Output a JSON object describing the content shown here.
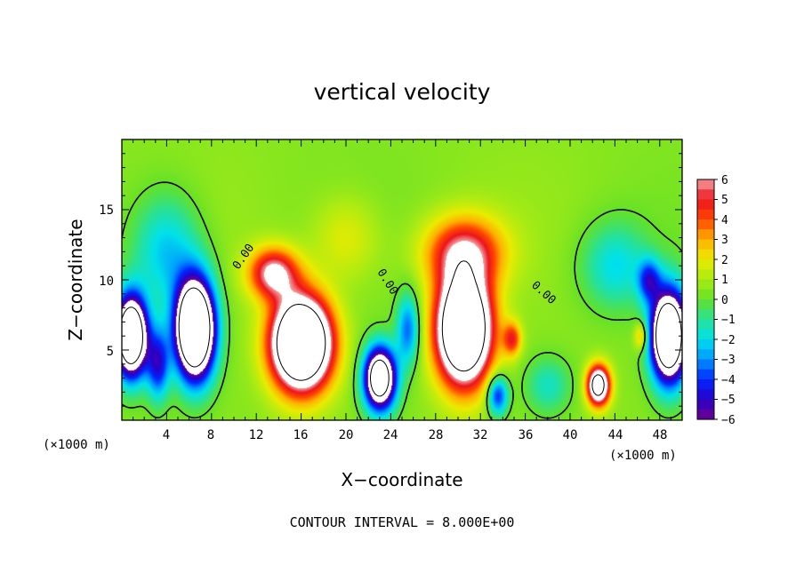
{
  "chart_data": {
    "type": "heatmap",
    "title": "vertical velocity",
    "xlabel": "X−coordinate",
    "ylabel": "Z−coordinate",
    "x_unit_left": "(×1000 m)",
    "x_unit_right": "(×1000 m)",
    "xlim": [
      0,
      50
    ],
    "ylim": [
      0,
      20
    ],
    "x_ticks": [
      "4",
      "8",
      "12",
      "16",
      "20",
      "24",
      "28",
      "32",
      "36",
      "40",
      "44",
      "48"
    ],
    "y_ticks": [
      "5",
      "10",
      "15"
    ],
    "colorbar": {
      "range": [
        -6,
        6
      ],
      "labels": [
        "6",
        "5",
        "4",
        "3",
        "2",
        "1",
        "0",
        "−1",
        "−2",
        "−3",
        "−4",
        "−5",
        "−6"
      ]
    },
    "contour_labels": [
      "0.00",
      "0.00",
      "0.00"
    ],
    "contour_interval_text": "CONTOUR INTERVAL = 8.000E+00",
    "features": [
      {
        "sign": "neg",
        "x": 0.8,
        "z": 6.0,
        "amp": 14,
        "sx": 1.4,
        "sz": 2.8
      },
      {
        "sign": "neg",
        "x": 6.5,
        "z": 6.5,
        "amp": 16,
        "sx": 1.7,
        "sz": 3.4
      },
      {
        "sign": "neg",
        "x": 3.2,
        "z": 4.0,
        "amp": 5,
        "sx": 1.0,
        "sz": 2.5
      },
      {
        "sign": "pos",
        "x": 16.0,
        "z": 5.5,
        "amp": 15,
        "sx": 2.6,
        "sz": 3.2
      },
      {
        "sign": "pos",
        "x": 13.5,
        "z": 10.5,
        "amp": 6,
        "sx": 2.2,
        "sz": 1.8
      },
      {
        "sign": "neg",
        "x": 23.0,
        "z": 3.0,
        "amp": 12,
        "sx": 1.4,
        "sz": 2.2
      },
      {
        "sign": "neg",
        "x": 25.5,
        "z": 6.5,
        "amp": 4,
        "sx": 1.0,
        "sz": 2.5
      },
      {
        "sign": "pos",
        "x": 30.5,
        "z": 6.5,
        "amp": 14,
        "sx": 2.4,
        "sz": 3.8
      },
      {
        "sign": "pos",
        "x": 30.5,
        "z": 12.0,
        "amp": 5,
        "sx": 3.5,
        "sz": 2.5
      },
      {
        "sign": "pos",
        "x": 34.8,
        "z": 5.8,
        "amp": 4,
        "sx": 0.8,
        "sz": 1.2
      },
      {
        "sign": "neg",
        "x": 33.5,
        "z": 1.8,
        "amp": 5,
        "sx": 0.9,
        "sz": 1.4
      },
      {
        "sign": "pos",
        "x": 42.5,
        "z": 2.5,
        "amp": 10,
        "sx": 1.0,
        "sz": 1.4
      },
      {
        "sign": "neg",
        "x": 38.0,
        "z": 2.5,
        "amp": 2,
        "sx": 2.0,
        "sz": 2.0
      },
      {
        "sign": "neg",
        "x": 48.8,
        "z": 6.0,
        "amp": 14,
        "sx": 1.6,
        "sz": 3.2
      },
      {
        "sign": "neg",
        "x": 47.0,
        "z": 10.0,
        "amp": 4,
        "sx": 1.0,
        "sz": 1.5
      },
      {
        "sign": "pos",
        "x": 46.3,
        "z": 6.0,
        "amp": 3,
        "sx": 0.6,
        "sz": 1.0
      },
      {
        "sign": "neg",
        "x": 44.0,
        "z": 11.0,
        "amp": 2.5,
        "sx": 3.0,
        "sz": 3.0
      },
      {
        "sign": "neg",
        "x": 4.0,
        "z": 12.0,
        "amp": 3,
        "sx": 3.0,
        "sz": 4.0
      },
      {
        "sign": "pos",
        "x": 20.0,
        "z": 13.0,
        "amp": 1.5,
        "sx": 3.0,
        "sz": 3.0
      }
    ]
  }
}
